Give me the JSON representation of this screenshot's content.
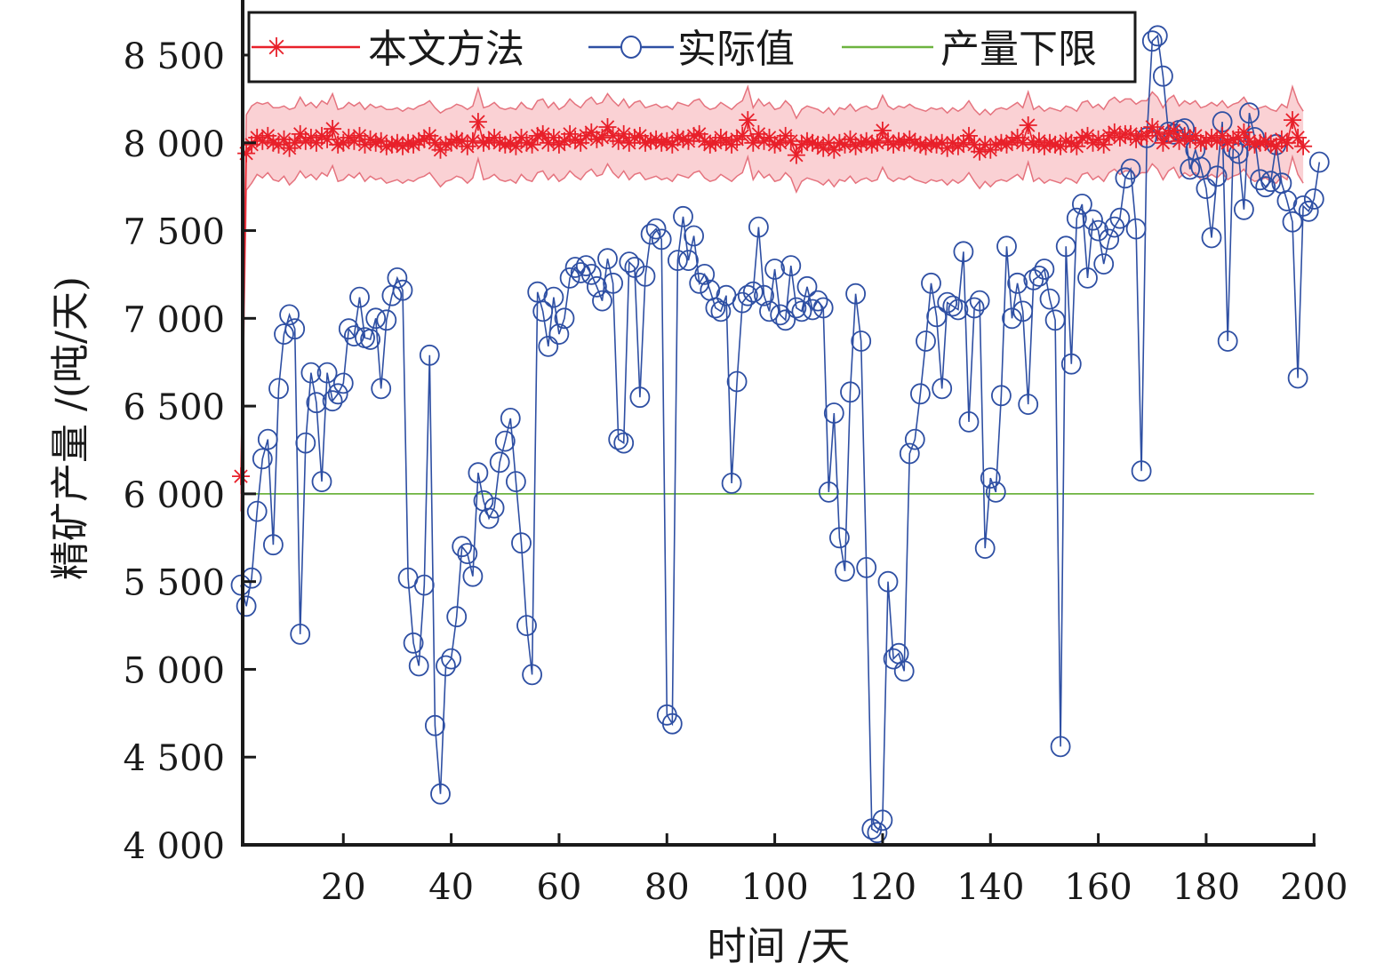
{
  "chart_data": {
    "type": "line",
    "title": "",
    "xlabel": "时间 /天",
    "ylabel": "精矿产量 /(吨/天)",
    "xlim": [
      1,
      200
    ],
    "ylim": [
      4000,
      8800
    ],
    "xticks": [
      20,
      40,
      60,
      80,
      100,
      120,
      140,
      160,
      180,
      200
    ],
    "xtick_labels": [
      "20",
      "40",
      "60",
      "80",
      "100",
      "120",
      "140",
      "160",
      "180",
      "200"
    ],
    "yticks": [
      4000,
      4500,
      5000,
      5500,
      6000,
      6500,
      7000,
      7500,
      8000,
      8500
    ],
    "ytick_labels": [
      "4 000",
      "4 500",
      "5 000",
      "5 500",
      "6 000",
      "6 500",
      "7 000",
      "7 500",
      "8 000",
      "8 500"
    ],
    "grid": false,
    "legend": {
      "placement": "top",
      "entries": [
        {
          "label": "本文方法",
          "marker": "asterisk",
          "color": "#e8202a"
        },
        {
          "label": "实际值",
          "marker": "circle",
          "color": "#2e4fa3"
        },
        {
          "label": "产量下限",
          "marker": "none",
          "color": "#6db33f"
        }
      ]
    },
    "colors": {
      "method": "#e8202a",
      "band_fill": "#f9c9cc",
      "band_edge": "#e5737e",
      "actual": "#2e4fa3",
      "lower_limit": "#6db33f",
      "axis": "#1a1a1a"
    },
    "series": [
      {
        "name": "本文方法",
        "x_start": 1,
        "x_step": 1,
        "values": [
          6100,
          7940,
          7990,
          8030,
          8010,
          8040,
          8000,
          7990,
          8020,
          7970,
          8000,
          8050,
          8010,
          8030,
          8000,
          8040,
          8020,
          8080,
          7990,
          8000,
          8030,
          8010,
          8040,
          7990,
          8020,
          8000,
          8010,
          7980,
          7990,
          8000,
          7980,
          8000,
          7990,
          8010,
          8020,
          8040,
          8000,
          7960,
          7990,
          8000,
          8020,
          8010,
          7980,
          8010,
          8120,
          8000,
          8010,
          8030,
          8000,
          7990,
          8000,
          7980,
          8030,
          8000,
          7990,
          8040,
          8050,
          8000,
          8030,
          7990,
          8010,
          8050,
          8020,
          8000,
          8040,
          8060,
          8020,
          8030,
          8090,
          8040,
          8010,
          8050,
          8000,
          8030,
          8040,
          8000,
          8010,
          8020,
          8000,
          8010,
          7990,
          8030,
          8020,
          8010,
          8040,
          8050,
          8010,
          7990,
          8000,
          8030,
          8010,
          7990,
          8020,
          8040,
          8130,
          8000,
          8050,
          8010,
          8030,
          7990,
          8000,
          8040,
          8010,
          7930,
          7990,
          8010,
          8000,
          7990,
          7970,
          8000,
          7960,
          8000,
          7990,
          8020,
          7980,
          8000,
          8010,
          7990,
          8000,
          8070,
          8010,
          7990,
          8010,
          8000,
          8020,
          8000,
          7990,
          7980,
          8000,
          7990,
          8000,
          7970,
          8000,
          7980,
          8000,
          8040,
          7990,
          7950,
          7990,
          7960,
          7990,
          8000,
          7990,
          8010,
          8030,
          8000,
          8100,
          7990,
          8010,
          7980,
          8000,
          7990,
          7980,
          8010,
          8000,
          7980,
          8030,
          8040,
          8000,
          8020,
          7990,
          8040,
          8060,
          8030,
          8050,
          8050,
          8020,
          8040,
          8040,
          8090,
          8060,
          8000,
          8050,
          8070,
          8010,
          8040,
          8020,
          8040,
          8000,
          8010,
          8030,
          8010,
          8040,
          8000,
          8020,
          8030,
          8060,
          8010,
          7990,
          8000,
          8010,
          7990,
          7980,
          8020,
          8000,
          8130,
          8030,
          7980
        ]
      },
      {
        "name": "本文方法 置信区间上界",
        "x_start": 1,
        "x_step": 1,
        "values": [
          6000,
          8160,
          8210,
          8230,
          8220,
          8230,
          8200,
          8200,
          8210,
          8190,
          8200,
          8260,
          8210,
          8230,
          8200,
          8240,
          8220,
          8280,
          8190,
          8200,
          8230,
          8210,
          8230,
          8190,
          8220,
          8200,
          8210,
          8190,
          8190,
          8200,
          8180,
          8200,
          8190,
          8210,
          8220,
          8240,
          8200,
          8170,
          8190,
          8200,
          8220,
          8210,
          8190,
          8210,
          8310,
          8200,
          8210,
          8230,
          8200,
          8190,
          8200,
          8190,
          8230,
          8200,
          8190,
          8240,
          8250,
          8200,
          8230,
          8190,
          8210,
          8250,
          8220,
          8200,
          8240,
          8260,
          8220,
          8230,
          8280,
          8240,
          8210,
          8250,
          8200,
          8230,
          8240,
          8200,
          8210,
          8220,
          8200,
          8210,
          8190,
          8230,
          8220,
          8210,
          8240,
          8250,
          8210,
          8190,
          8200,
          8230,
          8210,
          8190,
          8220,
          8240,
          8320,
          8200,
          8250,
          8210,
          8230,
          8190,
          8200,
          8240,
          8210,
          8140,
          8190,
          8210,
          8200,
          8190,
          8170,
          8200,
          8160,
          8200,
          8190,
          8220,
          8180,
          8200,
          8210,
          8190,
          8200,
          8270,
          8210,
          8190,
          8210,
          8200,
          8220,
          8200,
          8190,
          8180,
          8200,
          8190,
          8200,
          8170,
          8200,
          8180,
          8200,
          8240,
          8190,
          8160,
          8190,
          8160,
          8190,
          8200,
          8190,
          8210,
          8230,
          8200,
          8290,
          8190,
          8210,
          8180,
          8200,
          8190,
          8180,
          8210,
          8200,
          8180,
          8230,
          8240,
          8200,
          8220,
          8190,
          8240,
          8260,
          8230,
          8250,
          8250,
          8220,
          8240,
          8240,
          8290,
          8260,
          8200,
          8250,
          8270,
          8210,
          8240,
          8220,
          8240,
          8200,
          8210,
          8230,
          8210,
          8240,
          8200,
          8220,
          8230,
          8260,
          8210,
          8190,
          8200,
          8210,
          8190,
          8180,
          8220,
          8200,
          8320,
          8230,
          8180
        ]
      },
      {
        "name": "本文方法 置信区间下界",
        "x_start": 1,
        "x_step": 1,
        "values": [
          5900,
          7730,
          7770,
          7820,
          7800,
          7830,
          7790,
          7780,
          7810,
          7760,
          7790,
          7840,
          7800,
          7820,
          7790,
          7830,
          7810,
          7870,
          7780,
          7790,
          7820,
          7800,
          7830,
          7780,
          7810,
          7790,
          7800,
          7770,
          7780,
          7790,
          7770,
          7790,
          7780,
          7800,
          7810,
          7830,
          7790,
          7750,
          7780,
          7790,
          7810,
          7800,
          7770,
          7800,
          7910,
          7790,
          7800,
          7820,
          7790,
          7780,
          7790,
          7770,
          7820,
          7790,
          7780,
          7830,
          7840,
          7790,
          7820,
          7780,
          7800,
          7840,
          7810,
          7790,
          7830,
          7850,
          7810,
          7820,
          7880,
          7830,
          7800,
          7840,
          7790,
          7820,
          7830,
          7790,
          7800,
          7810,
          7790,
          7800,
          7780,
          7820,
          7810,
          7800,
          7830,
          7840,
          7800,
          7780,
          7790,
          7820,
          7800,
          7780,
          7810,
          7830,
          7920,
          7790,
          7840,
          7800,
          7820,
          7780,
          7790,
          7830,
          7800,
          7720,
          7780,
          7800,
          7790,
          7780,
          7760,
          7790,
          7750,
          7790,
          7780,
          7810,
          7770,
          7790,
          7800,
          7780,
          7790,
          7860,
          7800,
          7780,
          7800,
          7790,
          7810,
          7790,
          7780,
          7770,
          7790,
          7780,
          7790,
          7760,
          7790,
          7770,
          7790,
          7830,
          7780,
          7740,
          7780,
          7750,
          7780,
          7790,
          7780,
          7800,
          7820,
          7790,
          7890,
          7780,
          7800,
          7770,
          7790,
          7780,
          7770,
          7800,
          7790,
          7770,
          7820,
          7830,
          7790,
          7810,
          7780,
          7830,
          7850,
          7820,
          7840,
          7840,
          7810,
          7830,
          7830,
          7880,
          7850,
          7790,
          7840,
          7860,
          7800,
          7830,
          7810,
          7830,
          7790,
          7800,
          7820,
          7800,
          7830,
          7790,
          7810,
          7820,
          7850,
          7800,
          7780,
          7790,
          7800,
          7780,
          7770,
          7810,
          7790,
          7920,
          7820,
          7770
        ]
      },
      {
        "name": "实际值",
        "x_start": 1,
        "x_step": 1,
        "values": [
          5480,
          5360,
          5520,
          5900,
          6200,
          6310,
          5710,
          6600,
          6910,
          7020,
          6940,
          5200,
          6290,
          6690,
          6520,
          6070,
          6690,
          6530,
          6570,
          6630,
          6940,
          6900,
          7120,
          6890,
          6880,
          7000,
          6600,
          6990,
          7130,
          7230,
          7160,
          5520,
          5150,
          5020,
          5480,
          6790,
          4680,
          4290,
          5020,
          5060,
          5300,
          5700,
          5660,
          5530,
          6120,
          5960,
          5860,
          5920,
          6180,
          6300,
          6430,
          6070,
          5720,
          5250,
          4970,
          7150,
          7040,
          6840,
          7120,
          6910,
          7000,
          7230,
          7290,
          7260,
          7300,
          7250,
          7180,
          7100,
          7340,
          7200,
          6310,
          6290,
          7320,
          7290,
          6550,
          7240,
          7480,
          7510,
          7450,
          4740,
          4690,
          7330,
          7580,
          7330,
          7470,
          7200,
          7250,
          7160,
          7060,
          7040,
          7130,
          6060,
          6640,
          7090,
          7130,
          7150,
          7520,
          7130,
          7040,
          7280,
          7020,
          6990,
          7300,
          7060,
          7040,
          7180,
          7050,
          7100,
          7060,
          6010,
          6460,
          5750,
          5560,
          6580,
          7140,
          6870,
          5580,
          4090,
          4070,
          4140,
          5500,
          5060,
          5090,
          4990,
          6230,
          6310,
          6570,
          6870,
          7200,
          7010,
          6600,
          7090,
          7070,
          7050,
          7380,
          6410,
          7060,
          7100,
          5690,
          6090,
          6010,
          6560,
          7410,
          7000,
          7200,
          7040,
          6510,
          7220,
          7240,
          7280,
          7110,
          6990,
          4560,
          7410,
          6740,
          7570,
          7650,
          7230,
          7560,
          7500,
          7310,
          7450,
          7520,
          7570,
          7800,
          7850,
          7510,
          6130,
          8030,
          8580,
          8610,
          8380,
          8060,
          8050,
          8070,
          8080,
          7850,
          7960,
          7860,
          7740,
          7460,
          7810,
          8120,
          6870,
          7970,
          7940,
          7620,
          8170,
          8030,
          7790,
          7750,
          7780,
          7990,
          7770,
          7670,
          7550,
          6660,
          7640,
          7610,
          7680,
          7890
        ]
      },
      {
        "name": "产量下限",
        "x": [
          1,
          200
        ],
        "values": [
          6000,
          6000
        ]
      }
    ]
  }
}
